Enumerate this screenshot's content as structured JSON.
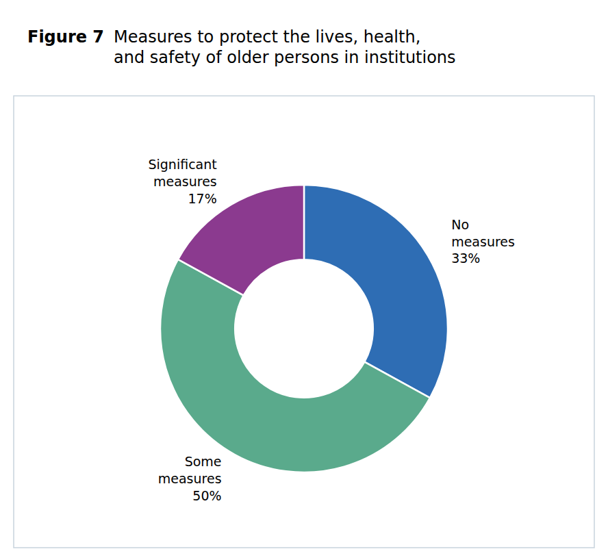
{
  "chart_data": {
    "type": "pie",
    "title": "Figure 7",
    "subtitle": "Measures to protect the lives, health,\nand safety of older persons in institutions",
    "categories": [
      "No\nmeasures",
      "Some\nmeasures",
      "Significant\nmeasures"
    ],
    "values": [
      33,
      50,
      17
    ],
    "value_labels": [
      "33%",
      "50%",
      "17%"
    ],
    "colors": [
      "#2e6db4",
      "#5aaa8c",
      "#8b3a8f"
    ],
    "data_labels": true
  }
}
